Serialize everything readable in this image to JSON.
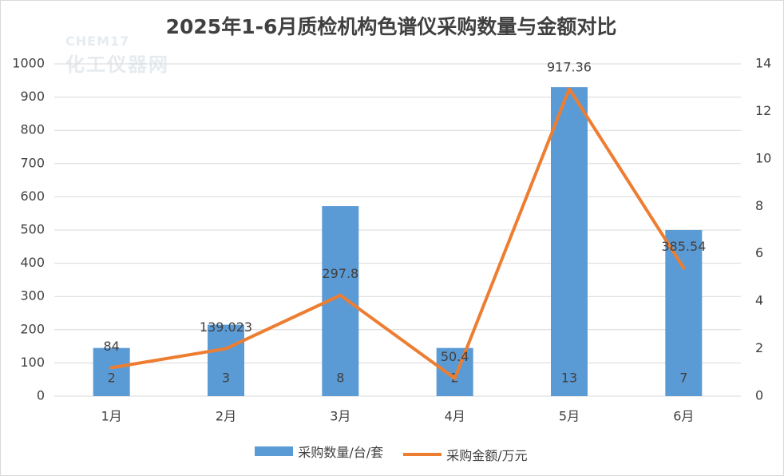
{
  "title": "2025年1-6月质检机构色谱仪采购数量与金额对比",
  "watermark": {
    "line1": "CHEM17",
    "line2": "化工仪器网"
  },
  "chart_data": {
    "type": "bar",
    "categories": [
      "1月",
      "2月",
      "3月",
      "4月",
      "5月",
      "6月"
    ],
    "series": [
      {
        "name": "采购数量/台/套",
        "type": "bar",
        "axis": "left",
        "values": [
          145,
          215,
          572,
          145,
          930,
          500
        ],
        "labels": [
          "2",
          "3",
          "8",
          "2",
          "13",
          "7"
        ]
      },
      {
        "name": "采购金额/万元",
        "type": "line",
        "axis": "right",
        "values": [
          1.2,
          2.0,
          4.25,
          0.75,
          12.95,
          5.4
        ],
        "labels": [
          "84",
          "139.023",
          "297.8",
          "50.4",
          "917.36",
          "385.54"
        ]
      }
    ],
    "y_left": {
      "min": 0,
      "max": 1000,
      "ticks": [
        0,
        100,
        200,
        300,
        400,
        500,
        600,
        700,
        800,
        900,
        1000
      ]
    },
    "y_right": {
      "min": 0,
      "max": 14,
      "ticks": [
        0,
        2,
        4,
        6,
        8,
        10,
        12,
        14
      ]
    },
    "grid": true,
    "legend_position": "bottom",
    "colors": {
      "bar": "#5b9bd5",
      "line": "#ed7d31",
      "grid": "#d9d9d9",
      "text": "#404040"
    }
  }
}
